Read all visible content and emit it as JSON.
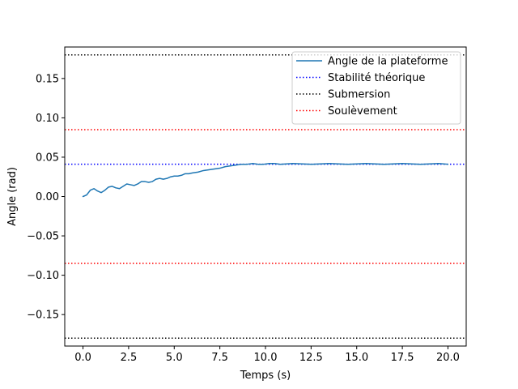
{
  "chart_data": {
    "type": "line",
    "title": "",
    "xlabel": "Temps (s)",
    "ylabel": "Angle (rad)",
    "xlim": [
      -1.0,
      21.0
    ],
    "ylim": [
      -0.19,
      0.19
    ],
    "grid": false,
    "legend_position": "top-right",
    "x_ticks": [
      0.0,
      2.5,
      5.0,
      7.5,
      10.0,
      12.5,
      15.0,
      17.5,
      20.0
    ],
    "x_tick_labels": [
      "0.0",
      "2.5",
      "5.0",
      "7.5",
      "10.0",
      "12.5",
      "15.0",
      "17.5",
      "20.0"
    ],
    "y_ticks": [
      -0.15,
      -0.1,
      -0.05,
      0.0,
      0.05,
      0.1,
      0.15
    ],
    "y_tick_labels": [
      "−0.15",
      "−0.10",
      "−0.05",
      "0.00",
      "0.05",
      "0.10",
      "0.15"
    ],
    "series": [
      {
        "name": "Angle de la plateforme",
        "color": "#1f77b4",
        "style": "solid",
        "x": [
          0.0,
          0.2,
          0.4,
          0.6,
          0.8,
          1.0,
          1.2,
          1.4,
          1.6,
          1.8,
          2.0,
          2.2,
          2.4,
          2.6,
          2.8,
          3.0,
          3.2,
          3.4,
          3.6,
          3.8,
          4.0,
          4.2,
          4.4,
          4.6,
          4.8,
          5.0,
          5.2,
          5.4,
          5.6,
          5.8,
          6.0,
          6.3,
          6.6,
          6.9,
          7.2,
          7.5,
          7.8,
          8.1,
          8.4,
          8.7,
          9.0,
          9.3,
          9.6,
          9.9,
          10.2,
          10.5,
          10.8,
          11.5,
          12.5,
          13.5,
          14.5,
          15.5,
          16.5,
          17.5,
          18.5,
          19.5,
          20.0
        ],
        "y": [
          0.0,
          0.002,
          0.008,
          0.01,
          0.007,
          0.005,
          0.008,
          0.012,
          0.013,
          0.011,
          0.01,
          0.013,
          0.016,
          0.015,
          0.014,
          0.016,
          0.019,
          0.019,
          0.018,
          0.019,
          0.022,
          0.023,
          0.022,
          0.023,
          0.025,
          0.026,
          0.026,
          0.027,
          0.029,
          0.029,
          0.03,
          0.031,
          0.033,
          0.034,
          0.035,
          0.036,
          0.038,
          0.039,
          0.04,
          0.041,
          0.041,
          0.042,
          0.041,
          0.041,
          0.042,
          0.042,
          0.041,
          0.042,
          0.041,
          0.042,
          0.041,
          0.042,
          0.041,
          0.042,
          0.041,
          0.042,
          0.041
        ]
      },
      {
        "name": "Stabilité théorique",
        "color": "#0000ff",
        "style": "dotted",
        "hline": 0.041
      },
      {
        "name": "Submersion",
        "color": "#000000",
        "style": "dotted",
        "hline": [
          0.18,
          -0.18
        ]
      },
      {
        "name": "Soulèvement",
        "color": "#ff0000",
        "style": "dotted",
        "hline": [
          0.085,
          -0.085
        ]
      }
    ]
  }
}
